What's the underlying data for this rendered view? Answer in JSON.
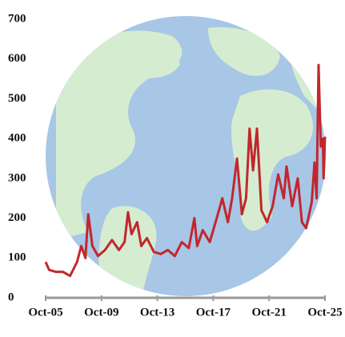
{
  "chart_data": {
    "type": "line",
    "x": [
      2005.75,
      2006.0,
      2006.5,
      2007.0,
      2007.5,
      2008.0,
      2008.3,
      2008.6,
      2008.8,
      2009.1,
      2009.5,
      2010.0,
      2010.5,
      2011.0,
      2011.4,
      2011.65,
      2011.9,
      2012.3,
      2012.6,
      2013.0,
      2013.5,
      2014.0,
      2014.5,
      2015.0,
      2015.5,
      2016.0,
      2016.4,
      2016.6,
      2017.0,
      2017.5,
      2018.0,
      2018.4,
      2018.8,
      2019.1,
      2019.45,
      2019.8,
      2020.1,
      2020.35,
      2020.6,
      2020.88,
      2021.2,
      2021.6,
      2022.0,
      2022.4,
      2022.8,
      2023.0,
      2023.4,
      2023.8,
      2024.1,
      2024.4,
      2024.8,
      2025.0,
      2025.15,
      2025.29,
      2025.45,
      2025.6,
      2025.65,
      2025.75
    ],
    "series": [
      {
        "color": "#c1272d",
        "values": [
          90,
          70,
          65,
          65,
          55,
          90,
          130,
          100,
          210,
          130,
          105,
          120,
          145,
          120,
          140,
          215,
          160,
          190,
          130,
          150,
          115,
          110,
          120,
          105,
          140,
          125,
          200,
          130,
          170,
          140,
          200,
          250,
          190,
          250,
          350,
          210,
          250,
          425,
          320,
          425,
          220,
          190,
          230,
          310,
          250,
          330,
          230,
          300,
          190,
          175,
          240,
          340,
          250,
          585,
          380,
          400,
          300,
          405
        ]
      }
    ],
    "xlim": [
      2005.75,
      2025.75
    ],
    "xticks": [
      {
        "value": 2005.75,
        "label": "Oct-05"
      },
      {
        "value": 2009.75,
        "label": "Oct-09"
      },
      {
        "value": 2013.75,
        "label": "Oct-13"
      },
      {
        "value": 2017.75,
        "label": "Oct-17"
      },
      {
        "value": 2021.75,
        "label": "Oct-21"
      },
      {
        "value": 2025.75,
        "label": "Oct-25"
      }
    ],
    "ylim": [
      0,
      700
    ],
    "yticks": [
      0,
      100,
      200,
      300,
      400,
      500,
      600,
      700
    ]
  }
}
